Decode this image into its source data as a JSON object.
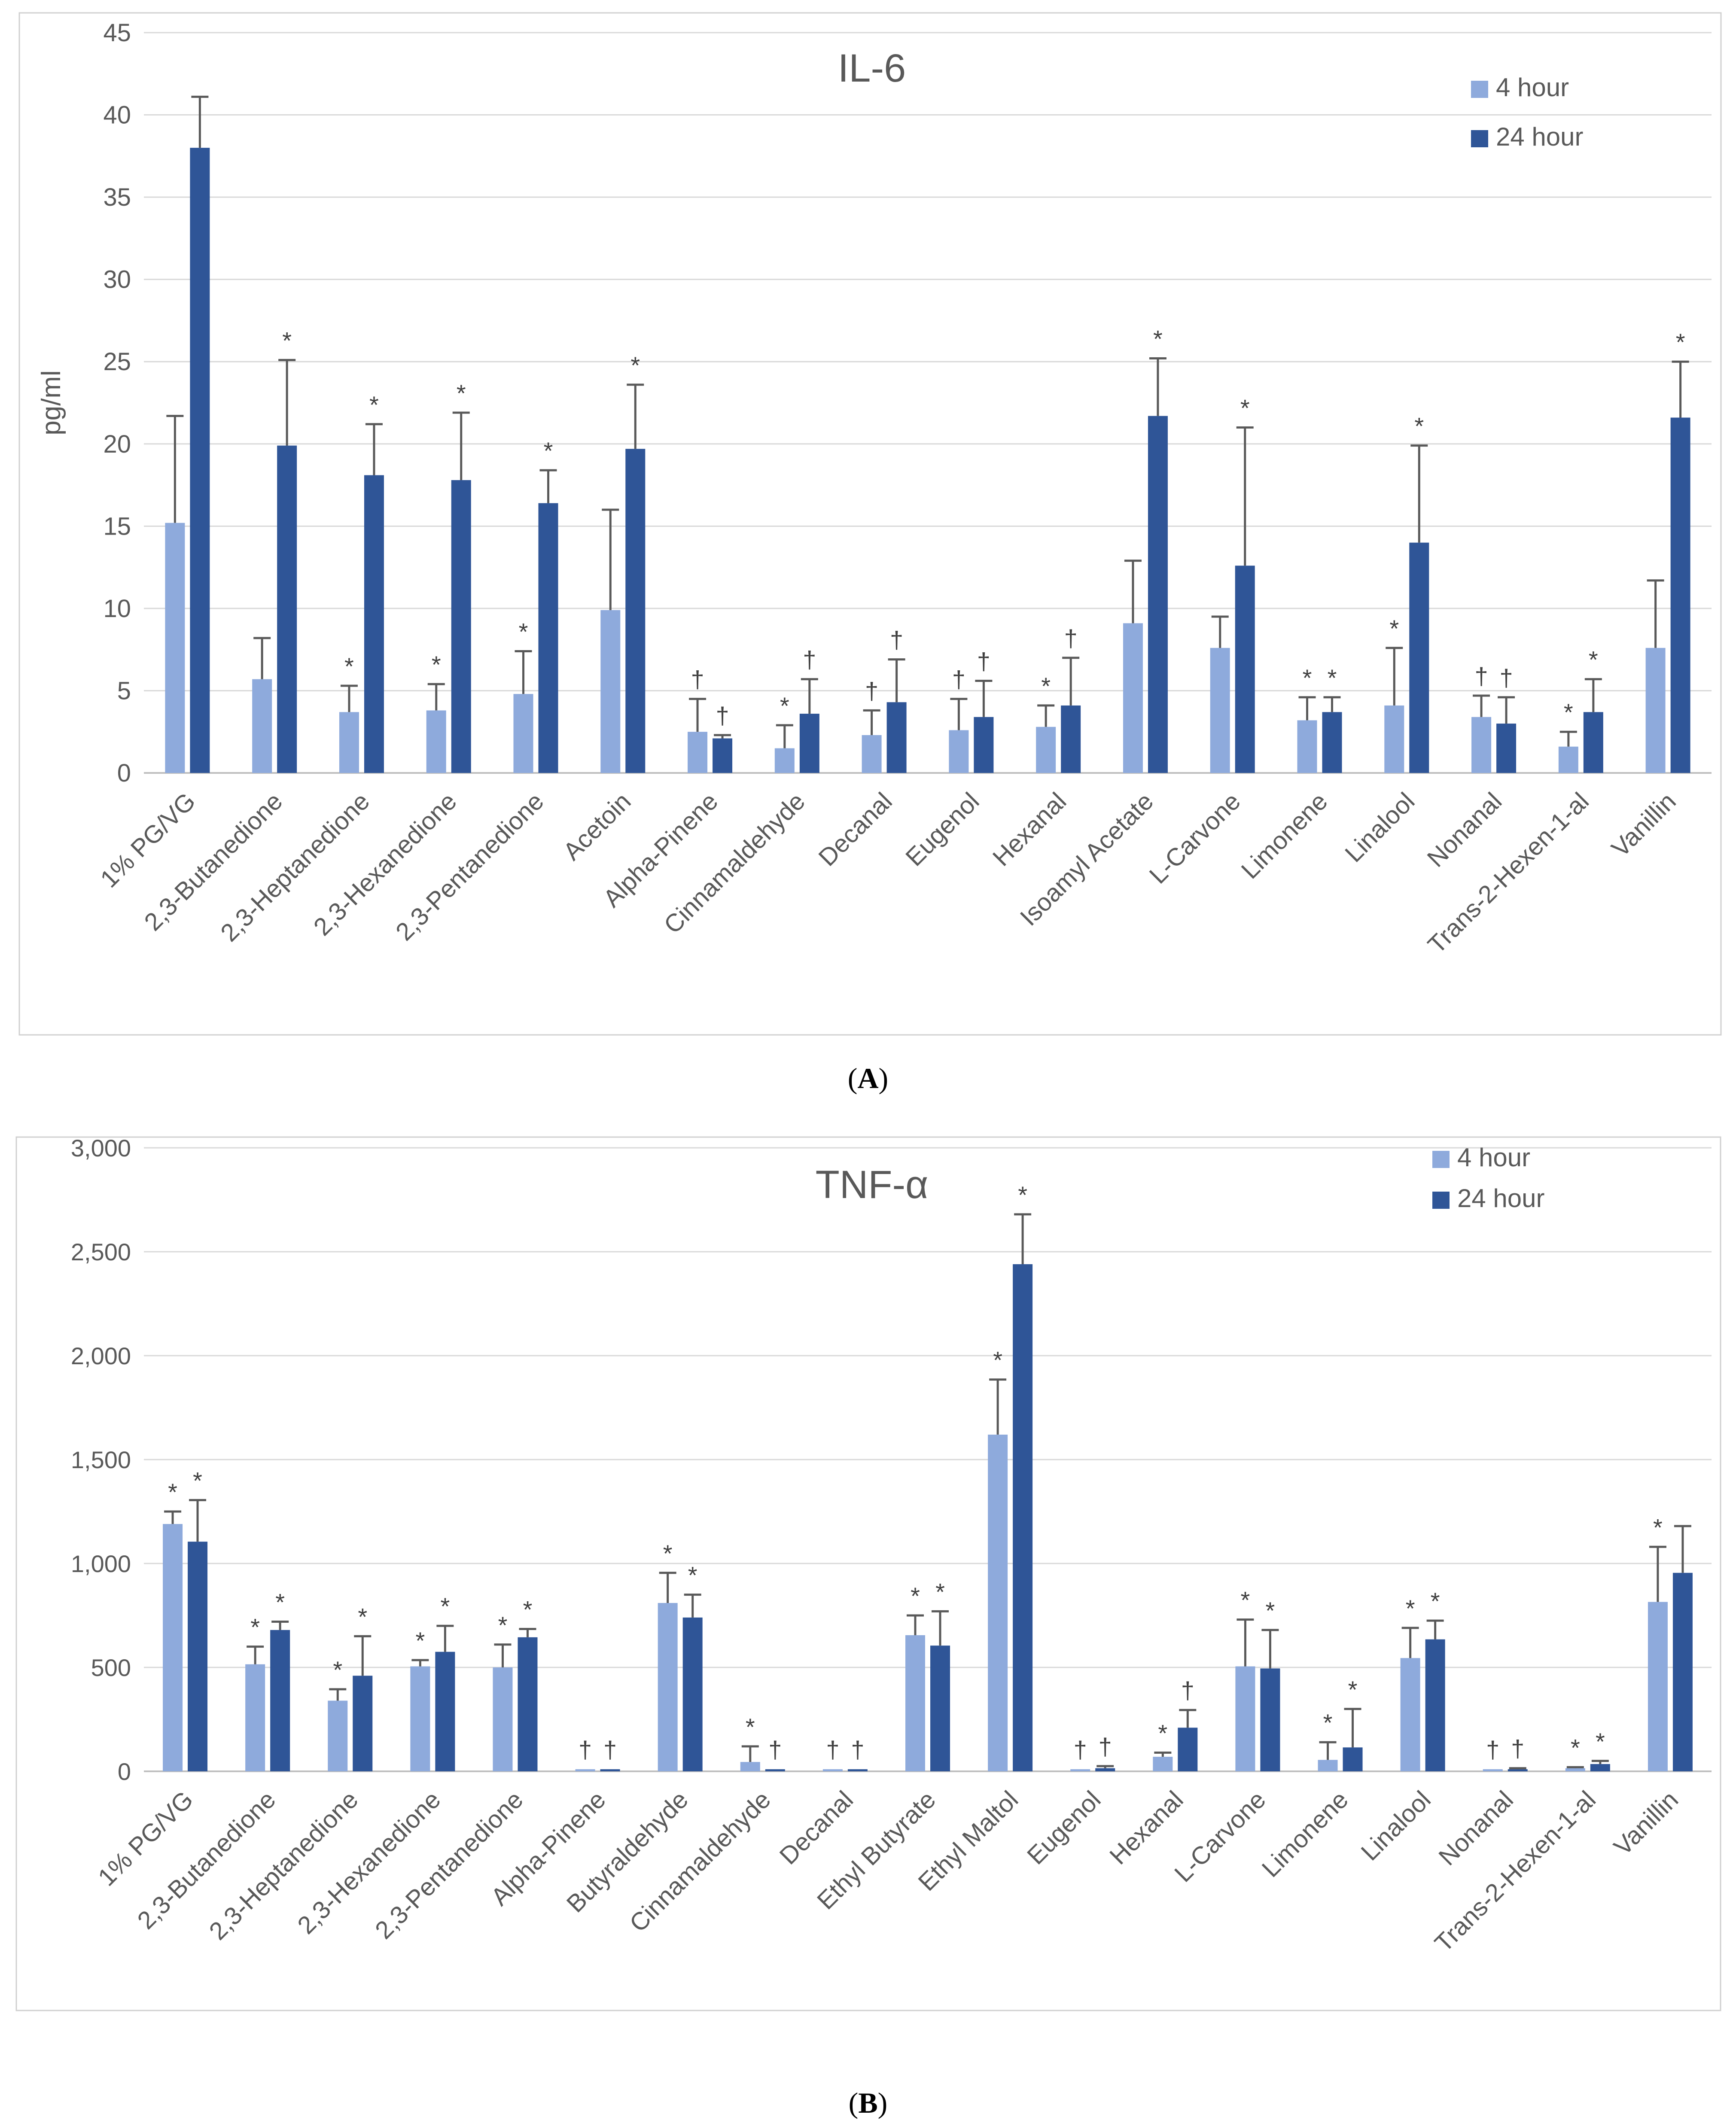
{
  "panel_labels": {
    "a": "A",
    "b": "B"
  },
  "colors": {
    "series1": "#8eaadc",
    "series2": "#2f5597",
    "axis_text": "#595959",
    "grid": "#d9d9d9",
    "frame": "#d0d0d0",
    "error": "#595959"
  },
  "chart_data": [
    {
      "type": "bar",
      "title": "IL-6",
      "xlabel": "",
      "ylabel": "pg/ml",
      "ylim": [
        0,
        45
      ],
      "yticks": [
        0,
        5,
        10,
        15,
        20,
        25,
        30,
        35,
        40,
        45
      ],
      "ytick_labels": [
        "0",
        "5",
        "10",
        "15",
        "20",
        "25",
        "30",
        "35",
        "40",
        "45"
      ],
      "grid": true,
      "legend_position": "top-right",
      "categories": [
        "1% PG/VG",
        "2,3-Butanedione",
        "2,3-Heptanedione",
        "2,3-Hexanedione",
        "2,3-Pentanedione",
        "Acetoin",
        "Alpha-Pinene",
        "Cinnamaldehyde",
        "Decanal",
        "Eugenol",
        "Hexanal",
        "Isoamyl Acetate",
        "L-Carvone",
        "Limonene",
        "Linalool",
        "Nonanal",
        "Trans-2-Hexen-1-al",
        "Vanillin"
      ],
      "series": [
        {
          "name": "4 hour",
          "values": [
            15.2,
            5.7,
            3.7,
            3.8,
            4.8,
            9.9,
            2.5,
            1.5,
            2.3,
            2.6,
            2.8,
            9.1,
            7.6,
            3.2,
            4.1,
            3.4,
            1.6,
            7.6
          ],
          "errors": [
            6.5,
            2.5,
            1.6,
            1.6,
            2.6,
            6.1,
            2.0,
            1.4,
            1.5,
            1.9,
            1.3,
            3.8,
            1.9,
            1.4,
            3.5,
            1.3,
            0.9,
            4.1
          ],
          "annotations": [
            "",
            "",
            "*",
            "*",
            "*",
            "",
            "†",
            "*",
            "†",
            "†",
            "*",
            "",
            "",
            "*",
            "*",
            "†",
            "*",
            ""
          ]
        },
        {
          "name": "24 hour",
          "values": [
            38.0,
            19.9,
            18.1,
            17.8,
            16.4,
            19.7,
            2.1,
            3.6,
            4.3,
            3.4,
            4.1,
            21.7,
            12.6,
            3.7,
            14.0,
            3.0,
            3.7,
            21.6
          ],
          "errors": [
            3.1,
            5.2,
            3.1,
            4.1,
            2.0,
            3.9,
            0.2,
            2.1,
            2.6,
            2.2,
            2.9,
            3.5,
            8.4,
            0.9,
            5.9,
            1.6,
            2.0,
            3.4
          ],
          "annotations": [
            "",
            "*",
            "*",
            "*",
            "*",
            "*",
            "†",
            "†",
            "†",
            "†",
            "†",
            "*",
            "*",
            "*",
            "*",
            "†",
            "*",
            "*"
          ]
        }
      ]
    },
    {
      "type": "bar",
      "title": "TNF-α",
      "xlabel": "",
      "ylabel": "",
      "ylim": [
        0,
        3000
      ],
      "yticks": [
        0,
        500,
        1000,
        1500,
        2000,
        2500,
        3000
      ],
      "ytick_labels": [
        "0",
        "500",
        "1,000",
        "1,500",
        "2,000",
        "2,500",
        "3,000"
      ],
      "grid": true,
      "legend_position": "top-right",
      "categories": [
        "1% PG/VG",
        "2,3-Butanedione",
        "2,3-Heptanedione",
        "2,3-Hexanedione",
        "2,3-Pentanedione",
        "Alpha-Pinene",
        "Butyraldehyde",
        "Cinnamaldehyde",
        "Decanal",
        "Ethyl Butyrate",
        "Ethyl Maltol",
        "Eugenol",
        "Hexanal",
        "L-Carvone",
        "Limonene",
        "Linalool",
        "Nonanal",
        "Trans-2-Hexen-1-al",
        "Vanillin"
      ],
      "series": [
        {
          "name": "4 hour",
          "values": [
            1190,
            515,
            340,
            505,
            500,
            10,
            810,
            45,
            10,
            655,
            1620,
            10,
            70,
            505,
            55,
            545,
            10,
            15,
            815
          ],
          "errors": [
            60,
            85,
            55,
            30,
            110,
            0,
            145,
            75,
            0,
            95,
            265,
            0,
            20,
            225,
            85,
            145,
            0,
            5,
            265
          ],
          "annotations": [
            "*",
            "*",
            "*",
            "*",
            "*",
            "†",
            "*",
            "*",
            "†",
            "*",
            "*",
            "†",
            "*",
            "*",
            "*",
            "*",
            "†",
            "*",
            "*"
          ]
        },
        {
          "name": "24 hour",
          "values": [
            1105,
            680,
            460,
            575,
            645,
            10,
            740,
            10,
            10,
            605,
            2440,
            15,
            210,
            495,
            115,
            635,
            10,
            35,
            955
          ],
          "errors": [
            200,
            40,
            190,
            125,
            40,
            0,
            110,
            0,
            0,
            165,
            240,
            10,
            85,
            185,
            185,
            90,
            5,
            15,
            225
          ],
          "annotations": [
            "*",
            "*",
            "*",
            "*",
            "*",
            "†",
            "*",
            "†",
            "†",
            "*",
            "*",
            "†",
            "†",
            "*",
            "*",
            "*",
            "†",
            "*",
            ""
          ]
        }
      ]
    }
  ]
}
